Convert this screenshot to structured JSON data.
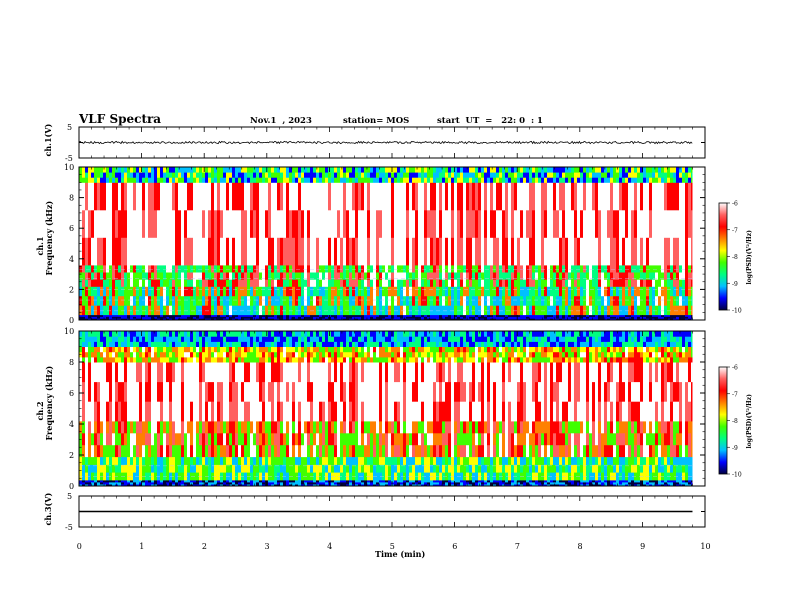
{
  "header": {
    "title": "VLF Spectra",
    "date": "Nov.1  , 2023",
    "station": "station= MOS",
    "start": "start  UT  =   22: 0  : 1"
  },
  "chart_data": [
    {
      "type": "line",
      "name": "ch1-waveform",
      "ylabel": "ch.1(V)",
      "ylim": [
        -5,
        5
      ],
      "yticks": [
        "5",
        "-5"
      ],
      "xlim": [
        0,
        10
      ],
      "x": [
        0,
        9.8
      ],
      "y": [
        0,
        0
      ]
    },
    {
      "type": "heatmap",
      "name": "ch1-spectrogram",
      "ylabel": [
        "ch.1",
        "Frequency (kHz)"
      ],
      "ylim": [
        0,
        10
      ],
      "yticks": [
        "0",
        "2",
        "4",
        "6",
        "8",
        "10"
      ],
      "xlim": [
        0,
        10
      ],
      "data_end": 9.8,
      "colorbar": {
        "label": "log(PSD)(V²/Hz)",
        "range": [
          -10,
          -6
        ],
        "ticks": [
          "-6",
          "-7",
          "-8",
          "-9",
          "-10"
        ]
      }
    },
    {
      "type": "heatmap",
      "name": "ch2-spectrogram",
      "ylabel": [
        "ch.2",
        "Frequency (kHz)"
      ],
      "ylim": [
        0,
        10
      ],
      "yticks": [
        "0",
        "2",
        "4",
        "6",
        "8",
        "10"
      ],
      "xlim": [
        0,
        10
      ],
      "data_end": 9.8,
      "colorbar": {
        "label": "log(PSD)(V²/Hz)",
        "range": [
          -10,
          -6
        ],
        "ticks": [
          "-6",
          "-7",
          "-8",
          "-9",
          "-10"
        ]
      }
    },
    {
      "type": "line",
      "name": "ch3-waveform",
      "ylabel": "ch.3(V)",
      "ylim": [
        -5,
        5
      ],
      "yticks": [
        "5",
        "-5"
      ],
      "xlim": [
        0,
        10
      ],
      "x": [
        0,
        9.8
      ],
      "y": [
        0,
        0
      ]
    }
  ],
  "xaxis": {
    "label": "Time  (min)",
    "ticks": [
      "0",
      "1",
      "2",
      "3",
      "4",
      "5",
      "6",
      "7",
      "8",
      "9",
      "10"
    ]
  },
  "colormap": [
    "#000040",
    "#0000ff",
    "#00c0ff",
    "#00ff80",
    "#40ff00",
    "#ffff00",
    "#ff8000",
    "#ff0000",
    "#ff6060",
    "#ffffff"
  ]
}
